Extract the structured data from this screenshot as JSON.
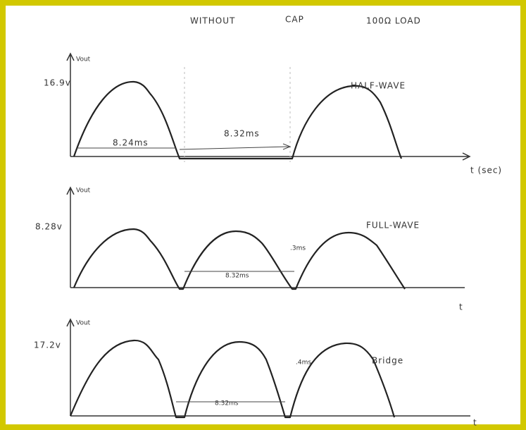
{
  "header": {
    "condition": "WITHOUT",
    "cap": "CAP",
    "load": "100Ω LOAD"
  },
  "panels": [
    {
      "title": "HALF-WAVE",
      "y_label": "Vout",
      "level": "16.9v",
      "on_time": "8.24ms",
      "off_time": "8.32ms",
      "x_label": "t (sec)"
    },
    {
      "title": "FULL-WAVE",
      "y_label": "Vout",
      "level": "8.28v",
      "period": "8.32ms",
      "gap": ".3ms",
      "x_label": "t"
    },
    {
      "title": "Bridge",
      "y_label": "Vout",
      "level": "17.2v",
      "period": "8.32ms",
      "gap": ".4ms",
      "x_label": "t"
    }
  ]
}
